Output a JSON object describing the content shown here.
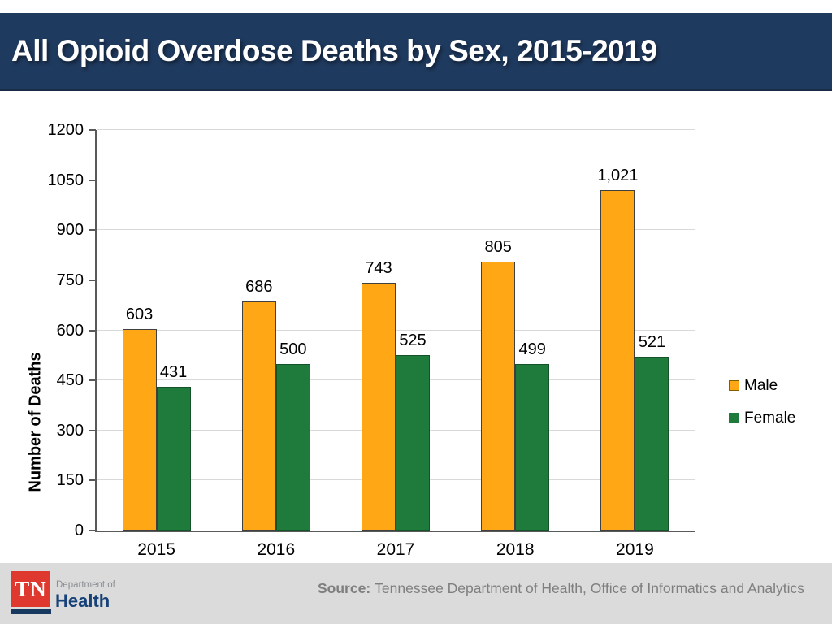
{
  "header": {
    "title": "All Opioid Overdose Deaths by Sex, 2015-2019"
  },
  "chart_data": {
    "type": "bar",
    "categories": [
      "2015",
      "2016",
      "2017",
      "2018",
      "2019"
    ],
    "series": [
      {
        "name": "Male",
        "values": [
          603,
          686,
          743,
          805,
          1021
        ],
        "labels": [
          "603",
          "686",
          "743",
          "805",
          "1,021"
        ],
        "color": "#ffa714",
        "border": "#404040",
        "swatch_border": "#7f6000"
      },
      {
        "name": "Female",
        "values": [
          431,
          500,
          525,
          499,
          521
        ],
        "labels": [
          "431",
          "500",
          "525",
          "499",
          "521"
        ],
        "color": "#1e7b3c",
        "border": "#14522a",
        "swatch_border": "#1e7b3c"
      }
    ],
    "title": "",
    "xlabel": "",
    "ylabel": "Number of Deaths",
    "ylim": [
      0,
      1200
    ],
    "ytick_step": 150,
    "yticks": [
      "0",
      "150",
      "300",
      "450",
      "600",
      "750",
      "900",
      "1050",
      "1200"
    ],
    "grid": true,
    "legend_position": "right"
  },
  "footer": {
    "source_label": "Source:",
    "source_text": "Tennessee Department of Health, Office of Informatics and Analytics",
    "logo": {
      "tn": "TN",
      "dept": "Department of",
      "health": "Health"
    }
  },
  "colors": {
    "header_bg": "#1f3a5f",
    "footer_bg": "#dbdbdb",
    "male_orange": "#ffa714",
    "female_green": "#1e7b3c",
    "axis_gray": "#595959",
    "gridline_gray": "#d9d9d9",
    "source_gray": "#7f7f7f",
    "tn_red": "#df392f",
    "logo_navy": "#164279"
  }
}
